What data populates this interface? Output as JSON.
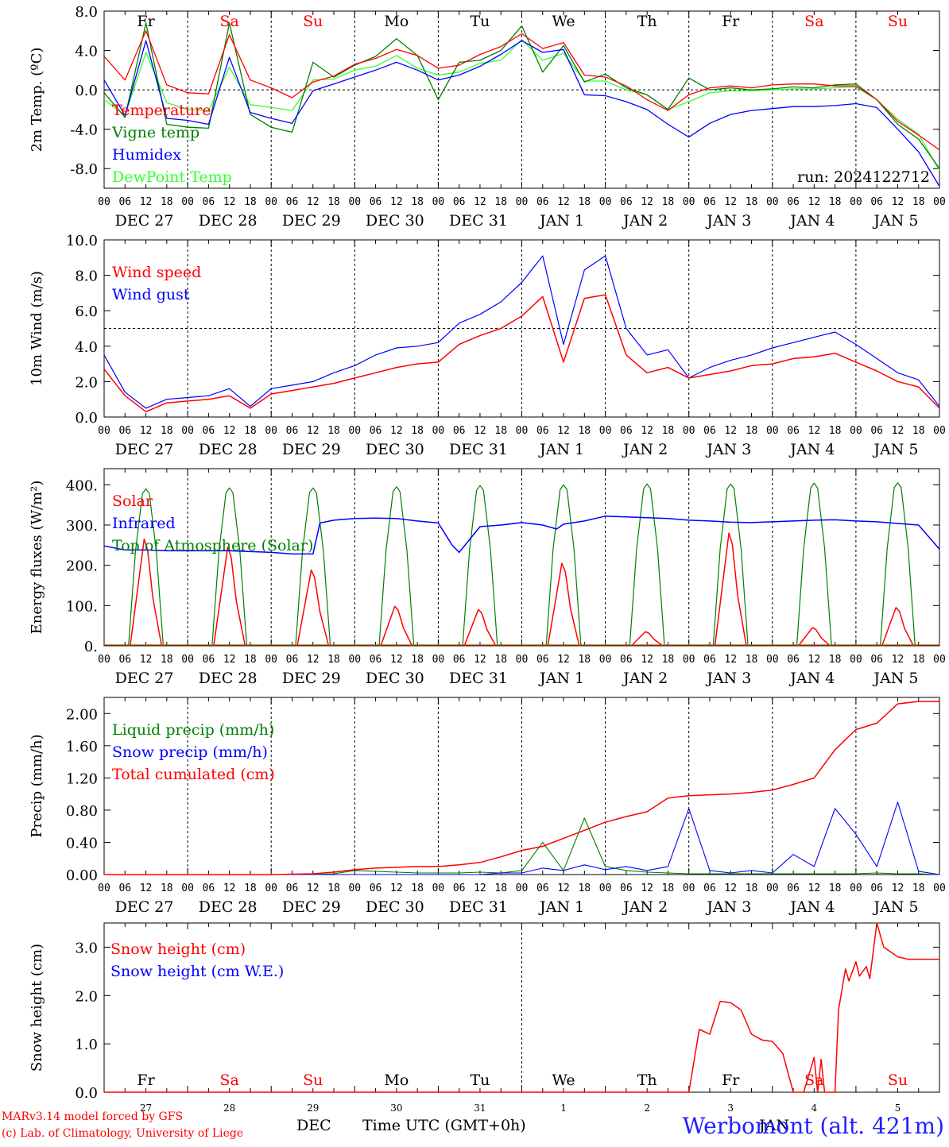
{
  "footer": {
    "model": "MARv3.14 model forced by GFS",
    "lab": "(c) Lab. of Climatology, University of Liege",
    "station": "Werbomont (alt. 421m)",
    "xtitle": "Time UTC (GMT+0h)",
    "month_dec": "DEC",
    "month_jan": "JAN"
  },
  "colors": {
    "red": "#ff0000",
    "green": "#008000",
    "blue": "#0000ff",
    "lightgreen": "#33ff33",
    "grid": "#000000"
  },
  "chart_data": [
    {
      "type": "line",
      "ylabel": "2m Temp. (ºC)",
      "ylim": [
        -10,
        8
      ],
      "yticks": [
        "8.0",
        "4.0",
        "0.0",
        "-4.0",
        "-8.0"
      ],
      "ytick_values": [
        8,
        4,
        0,
        -4,
        -8
      ],
      "hline": 0,
      "hour_ticks": [
        "00",
        "06",
        "12",
        "18"
      ],
      "date_labels": [
        "DEC 27",
        "DEC 28",
        "DEC 29",
        "DEC 30",
        "DEC 31",
        "JAN  1",
        "JAN  2",
        "JAN  3",
        "JAN  4",
        "JAN  5"
      ],
      "weekday_labels": [
        "Fr",
        "Sa",
        "Su",
        "Mo",
        "Tu",
        "We",
        "Th",
        "Fr",
        "Sa",
        "Su"
      ],
      "weekday_colors": [
        "#000",
        "#ff0000",
        "#ff0000",
        "#000",
        "#000",
        "#000",
        "#000",
        "#000",
        "#ff0000",
        "#ff0000"
      ],
      "run_label": "run: 2024122712",
      "x_hours": [
        0,
        6,
        12,
        18,
        24,
        30,
        36,
        42,
        48,
        54,
        60,
        66,
        72,
        78,
        84,
        90,
        96,
        102,
        108,
        114,
        120,
        126,
        132,
        138,
        144,
        150,
        156,
        162,
        168,
        174,
        180,
        186,
        192,
        198,
        204,
        210,
        216,
        222,
        228,
        234,
        240
      ],
      "series": [
        {
          "name": "Temperature",
          "color": "#ff0000",
          "values": [
            3.4,
            1.0,
            6.0,
            0.5,
            -0.3,
            -0.4,
            5.6,
            1.0,
            0.2,
            -0.8,
            0.8,
            1.4,
            2.6,
            3.2,
            4.1,
            3.5,
            2.2,
            2.5,
            3.6,
            4.4,
            5.7,
            4.2,
            4.8,
            1.5,
            1.3,
            0.4,
            -1.0,
            -2.1,
            -0.5,
            0.2,
            0.4,
            0.2,
            0.5,
            0.6,
            0.6,
            0.4,
            0.4,
            -1.0,
            -3.2,
            -4.6,
            -6.1
          ]
        },
        {
          "name": "Vigne temp",
          "color": "#008000",
          "values": [
            -0.3,
            -2.8,
            6.8,
            -3.5,
            -3.8,
            -3.9,
            6.8,
            -2.5,
            -3.8,
            -4.3,
            2.8,
            1.3,
            2.5,
            3.4,
            5.2,
            3.5,
            -1.0,
            2.8,
            3.0,
            4.0,
            6.5,
            1.8,
            4.5,
            0.8,
            1.6,
            0.2,
            -0.5,
            -2.0,
            1.2,
            0.0,
            0.2,
            0.0,
            0.1,
            0.3,
            0.2,
            0.5,
            0.6,
            -1.0,
            -3.5,
            -5.0,
            -8.0
          ]
        },
        {
          "name": "Humidex",
          "color": "#0000ff",
          "values": [
            1.0,
            -2.6,
            5.0,
            -2.9,
            -3.1,
            -3.5,
            3.3,
            -2.3,
            -2.9,
            -3.4,
            -0.1,
            0.6,
            1.3,
            2.0,
            2.8,
            2.0,
            1.0,
            1.5,
            2.4,
            3.6,
            5.0,
            3.8,
            4.1,
            -0.5,
            -0.6,
            -1.2,
            -2.0,
            -3.5,
            -4.8,
            -3.4,
            -2.5,
            -2.1,
            -1.9,
            -1.7,
            -1.7,
            -1.6,
            -1.4,
            -1.8,
            -4.0,
            -6.3,
            -9.8
          ]
        },
        {
          "name": "DewPoint Temp",
          "color": "#33ff33",
          "values": [
            -1.0,
            -2.6,
            3.8,
            -1.3,
            -2.0,
            -2.1,
            2.3,
            -1.5,
            -1.8,
            -2.1,
            1.0,
            1.1,
            2.0,
            2.4,
            3.5,
            2.2,
            1.5,
            1.8,
            2.7,
            3.0,
            5.1,
            3.0,
            3.7,
            0.9,
            0.9,
            0.0,
            -0.5,
            -2.0,
            -1.2,
            -0.3,
            -0.1,
            -0.1,
            0.0,
            0.1,
            0.1,
            0.2,
            0.3,
            -1.0,
            -3.0,
            -4.5,
            -8.2
          ]
        }
      ]
    },
    {
      "type": "line",
      "ylabel": "10m Wind (m/s)",
      "ylim": [
        0,
        10
      ],
      "yticks": [
        "10.0",
        "8.0",
        "6.0",
        "4.0",
        "2.0",
        "0.0"
      ],
      "ytick_values": [
        10,
        8,
        6,
        4,
        2,
        0
      ],
      "hline": 5,
      "hour_ticks": [
        "00",
        "06",
        "12",
        "18"
      ],
      "date_labels": [
        "DEC 27",
        "DEC 28",
        "DEC 29",
        "DEC 30",
        "DEC 31",
        "JAN  1",
        "JAN  2",
        "JAN  3",
        "JAN  4",
        "JAN  5"
      ],
      "x_hours": [
        0,
        6,
        12,
        18,
        24,
        30,
        36,
        42,
        48,
        54,
        60,
        66,
        72,
        78,
        84,
        90,
        96,
        102,
        108,
        114,
        120,
        126,
        132,
        138,
        144,
        150,
        156,
        162,
        168,
        174,
        180,
        186,
        192,
        198,
        204,
        210,
        216,
        222,
        228,
        234,
        240
      ],
      "series": [
        {
          "name": "Wind speed",
          "color": "#ff0000",
          "values": [
            2.7,
            1.2,
            0.3,
            0.8,
            0.9,
            1.0,
            1.2,
            0.5,
            1.3,
            1.5,
            1.7,
            1.9,
            2.2,
            2.5,
            2.8,
            3.0,
            3.1,
            4.1,
            4.6,
            5.0,
            5.7,
            6.8,
            3.1,
            6.7,
            6.9,
            3.5,
            2.5,
            2.8,
            2.2,
            2.4,
            2.6,
            2.9,
            3.0,
            3.3,
            3.4,
            3.6,
            3.1,
            2.6,
            2.0,
            1.7,
            0.5
          ]
        },
        {
          "name": "Wind gust",
          "color": "#0000ff",
          "values": [
            3.5,
            1.4,
            0.5,
            1.0,
            1.1,
            1.2,
            1.6,
            0.6,
            1.6,
            1.8,
            2.0,
            2.5,
            2.9,
            3.5,
            3.9,
            4.0,
            4.2,
            5.3,
            5.8,
            6.5,
            7.6,
            9.1,
            4.1,
            8.3,
            9.1,
            5.0,
            3.5,
            3.8,
            2.2,
            2.8,
            3.2,
            3.5,
            3.9,
            4.2,
            4.5,
            4.8,
            4.1,
            3.3,
            2.5,
            2.1,
            0.6
          ]
        }
      ]
    },
    {
      "type": "line",
      "ylabel": "Energy fluxes (W/m²)",
      "ylim": [
        0,
        440
      ],
      "yticks": [
        "400.",
        "300.",
        "200.",
        "100.",
        "0."
      ],
      "ytick_values": [
        400,
        300,
        200,
        100,
        0
      ],
      "hour_ticks": [
        "00",
        "06",
        "12",
        "18"
      ],
      "date_labels": [
        "DEC 27",
        "DEC 28",
        "DEC 29",
        "DEC 30",
        "DEC 31",
        "JAN  1",
        "JAN  2",
        "JAN  3",
        "JAN  4",
        "JAN  5"
      ],
      "x_hours_ir": [
        0,
        6,
        12,
        18,
        24,
        30,
        36,
        42,
        48,
        54,
        60,
        62,
        66,
        72,
        78,
        84,
        90,
        96,
        100,
        102,
        108,
        114,
        120,
        126,
        130,
        132,
        138,
        144,
        150,
        156,
        162,
        168,
        174,
        180,
        186,
        192,
        198,
        204,
        210,
        216,
        222,
        234,
        240
      ],
      "solar_peaks": [
        265,
        245,
        188,
        98,
        90,
        205,
        35,
        280,
        45,
        95
      ],
      "toa_peaks": [
        390,
        392,
        392,
        395,
        398,
        400,
        402,
        402,
        404,
        405
      ],
      "series": [
        {
          "name": "Solar",
          "color": "#ff0000"
        },
        {
          "name": "Infrared",
          "color": "#0000ff",
          "values": [
            248,
            238,
            238,
            236,
            236,
            236,
            236,
            234,
            232,
            228,
            228,
            305,
            312,
            316,
            317,
            316,
            310,
            305,
            250,
            232,
            296,
            300,
            306,
            300,
            290,
            302,
            310,
            322,
            320,
            318,
            316,
            312,
            310,
            307,
            306,
            308,
            310,
            312,
            313,
            310,
            308,
            300,
            240
          ]
        },
        {
          "name": "Top of Atmosphere (Solar)",
          "color": "#008000"
        }
      ]
    },
    {
      "type": "line",
      "ylabel": "Precip (mm/h)",
      "ylim": [
        0,
        2.2
      ],
      "yticks": [
        "2.00",
        "1.60",
        "1.20",
        "0.80",
        "0.40",
        "0.00"
      ],
      "ytick_values": [
        2.0,
        1.6,
        1.2,
        0.8,
        0.4,
        0.0
      ],
      "hour_ticks": [
        "00",
        "06",
        "12",
        "18"
      ],
      "date_labels": [
        "DEC 27",
        "DEC 28",
        "DEC 29",
        "DEC 30",
        "DEC 31",
        "JAN  1",
        "JAN  2",
        "JAN  3",
        "JAN  4",
        "JAN  5"
      ],
      "x_hours": [
        0,
        12,
        24,
        36,
        48,
        60,
        66,
        72,
        78,
        84,
        90,
        96,
        102,
        108,
        114,
        120,
        126,
        132,
        138,
        144,
        150,
        156,
        162,
        168,
        174,
        180,
        186,
        192,
        198,
        204,
        210,
        216,
        222,
        228,
        234,
        240
      ],
      "series": [
        {
          "name": "Liquid precip (mm/h)",
          "color": "#008000",
          "values": [
            0,
            0,
            0,
            0,
            0,
            0,
            0.01,
            0.05,
            0.04,
            0.03,
            0.02,
            0.02,
            0.02,
            0.03,
            0.02,
            0.05,
            0.4,
            0.05,
            0.7,
            0.1,
            0.05,
            0.03,
            0.02,
            0.01,
            0.01,
            0.01,
            0.01,
            0.01,
            0.01,
            0.01,
            0.01,
            0.01,
            0.02,
            0.01,
            0.01,
            0
          ]
        },
        {
          "name": "Snow precip (mm/h)",
          "color": "#0000ff",
          "values": [
            0,
            0,
            0,
            0,
            0,
            0,
            0,
            0,
            0,
            0,
            0,
            0,
            0,
            0,
            0.02,
            0.02,
            0.08,
            0.05,
            0.12,
            0.06,
            0.1,
            0.05,
            0.1,
            0.82,
            0.05,
            0.02,
            0.05,
            0.02,
            0.25,
            0.1,
            0.82,
            0.5,
            0.1,
            0.9,
            0.04,
            0
          ]
        },
        {
          "name": "Total cumulated (cm)",
          "color": "#ff0000",
          "values": [
            0,
            0,
            0,
            0,
            0,
            0.01,
            0.03,
            0.06,
            0.08,
            0.09,
            0.1,
            0.1,
            0.12,
            0.15,
            0.22,
            0.3,
            0.35,
            0.45,
            0.55,
            0.65,
            0.72,
            0.78,
            0.95,
            0.98,
            0.99,
            1.0,
            1.02,
            1.05,
            1.12,
            1.2,
            1.55,
            1.8,
            1.88,
            2.12,
            2.15,
            2.15
          ]
        }
      ]
    },
    {
      "type": "line",
      "ylabel": "Snow height (cm)",
      "ylim": [
        0,
        3.5
      ],
      "yticks": [
        "3.0",
        "2.0",
        "1.0",
        "0.0"
      ],
      "ytick_values": [
        3.0,
        2.0,
        1.0,
        0.0
      ],
      "day_numbers": [
        "27",
        "28",
        "29",
        "30",
        "31",
        "1",
        "2",
        "3",
        "4",
        "5"
      ],
      "weekday_labels": [
        "Fr",
        "Sa",
        "Su",
        "Mo",
        "Tu",
        "We",
        "Th",
        "Fr",
        "Sa",
        "Su"
      ],
      "weekday_colors": [
        "#000",
        "#ff0000",
        "#ff0000",
        "#000",
        "#000",
        "#000",
        "#000",
        "#000",
        "#ff0000",
        "#ff0000"
      ],
      "x_hours": [
        0,
        24,
        48,
        72,
        96,
        120,
        144,
        162,
        168,
        171,
        174,
        177,
        180,
        183,
        186,
        189,
        192,
        195,
        198,
        201,
        204,
        205,
        206,
        207,
        210,
        211,
        213,
        214,
        216,
        217,
        219,
        220,
        222,
        224,
        228,
        231,
        234,
        240
      ],
      "series": [
        {
          "name": "Snow height (cm)",
          "color": "#ff0000",
          "values": [
            0,
            0,
            0,
            0,
            0,
            0,
            0,
            0,
            0,
            1.3,
            1.2,
            1.88,
            1.85,
            1.7,
            1.2,
            1.08,
            1.05,
            0.8,
            0,
            0,
            0.72,
            0,
            0.68,
            0,
            0,
            1.7,
            2.55,
            2.3,
            2.7,
            2.4,
            2.6,
            2.35,
            3.5,
            3.0,
            2.8,
            2.75,
            2.75,
            2.75
          ]
        },
        {
          "name": "Snow height (cm W.E.)",
          "color": "#0000ff",
          "values": []
        }
      ]
    }
  ]
}
